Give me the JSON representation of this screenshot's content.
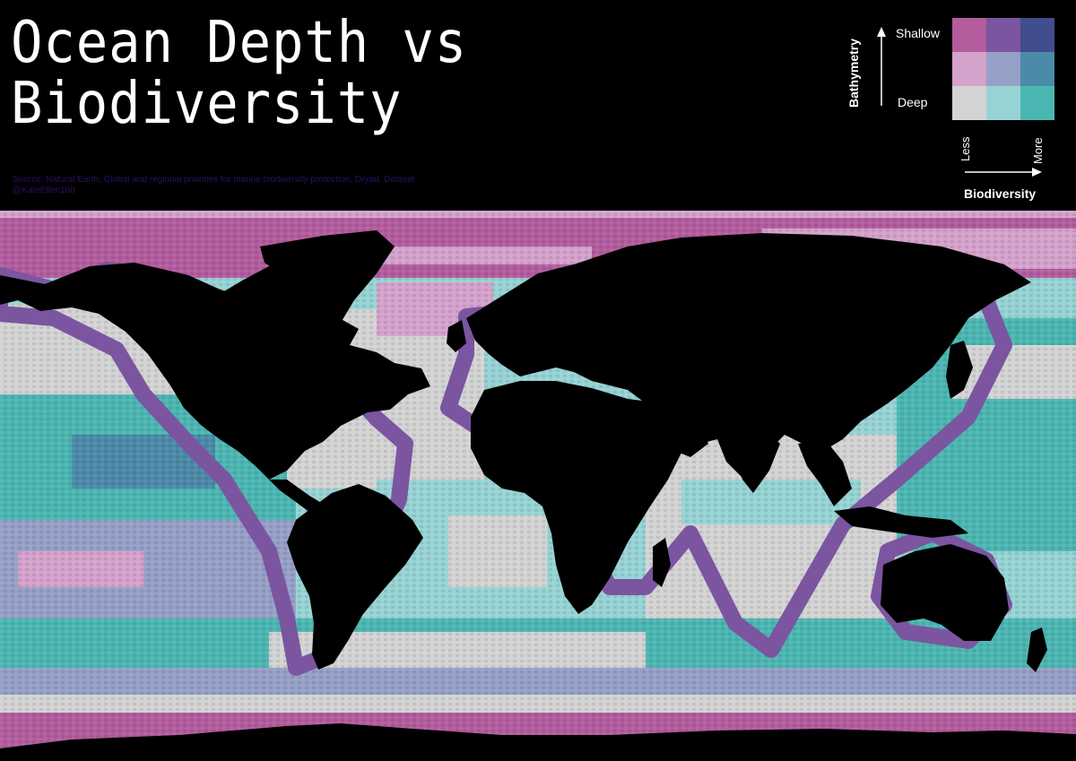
{
  "title": {
    "line1": "Ocean Depth vs",
    "line2": "Biodiversity"
  },
  "source": {
    "line1": "Source: Natural Earth, Global and regional priorities for marine biodiversity protection, Dryad, Dataset",
    "line2": "@KateEllen100"
  },
  "legend": {
    "y_axis_label": "Bathymetry",
    "y_top_label": "Shallow",
    "y_bottom_label": "Deep",
    "x_axis_label": "Biodiversity",
    "x_left_label": "Less",
    "x_right_label": "More",
    "arrow_icon": "arrow-icon",
    "grid_colors": [
      [
        "#b35c9e",
        "#7b55a0",
        "#414d8c"
      ],
      [
        "#d5a2cc",
        "#96a0c7",
        "#4b8aa9"
      ],
      [
        "#d3d3d3",
        "#97d3d4",
        "#4cb6b2"
      ]
    ]
  },
  "colors": {
    "background": "#000000",
    "land": "#000000",
    "shallow_less": "#b35c9e",
    "shallow_mid": "#7b55a0",
    "shallow_more": "#414d8c",
    "mid_less": "#d5a2cc",
    "mid_mid": "#96a0c7",
    "mid_more": "#4b8aa9",
    "deep_less": "#d3d3d3",
    "deep_mid": "#97d3d4",
    "deep_more": "#4cb6b2"
  }
}
